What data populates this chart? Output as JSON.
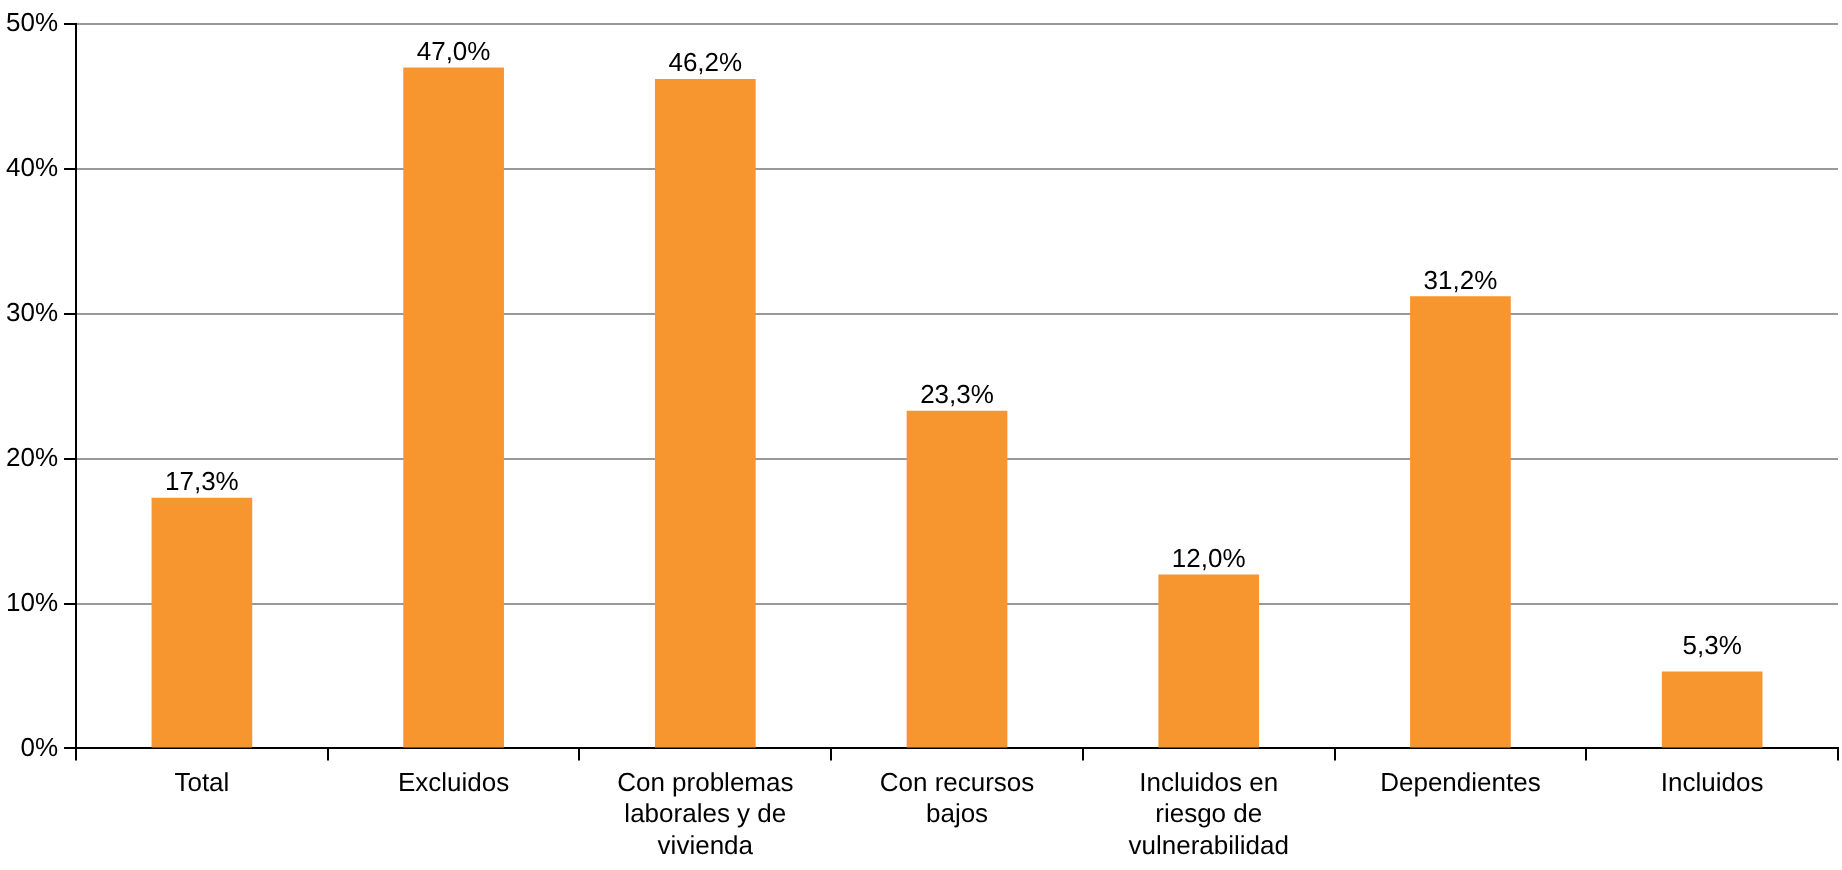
{
  "chart_data": {
    "type": "bar",
    "categories": [
      "Total",
      "Excluidos",
      "Con problemas laborales y de vivienda",
      "Con recursos bajos",
      "Incluidos en riesgo de vulnerabilidad",
      "Dependientes",
      "Incluidos"
    ],
    "values": [
      17.3,
      47.0,
      46.2,
      23.3,
      12.0,
      31.2,
      5.3
    ],
    "value_labels": [
      "17,3%",
      "47,0%",
      "46,2%",
      "23,3%",
      "12,0%",
      "31,2%",
      "5,3%"
    ],
    "color": "#f7952e",
    "ylim": [
      0,
      50
    ],
    "yticks": [
      {
        "value": 0,
        "label": "0%"
      },
      {
        "value": 10,
        "label": "10%"
      },
      {
        "value": 20,
        "label": "20%"
      },
      {
        "value": 30,
        "label": "30%"
      },
      {
        "value": 40,
        "label": "40%"
      },
      {
        "value": 50,
        "label": "50%"
      }
    ],
    "grid": "y",
    "legend": false
  }
}
